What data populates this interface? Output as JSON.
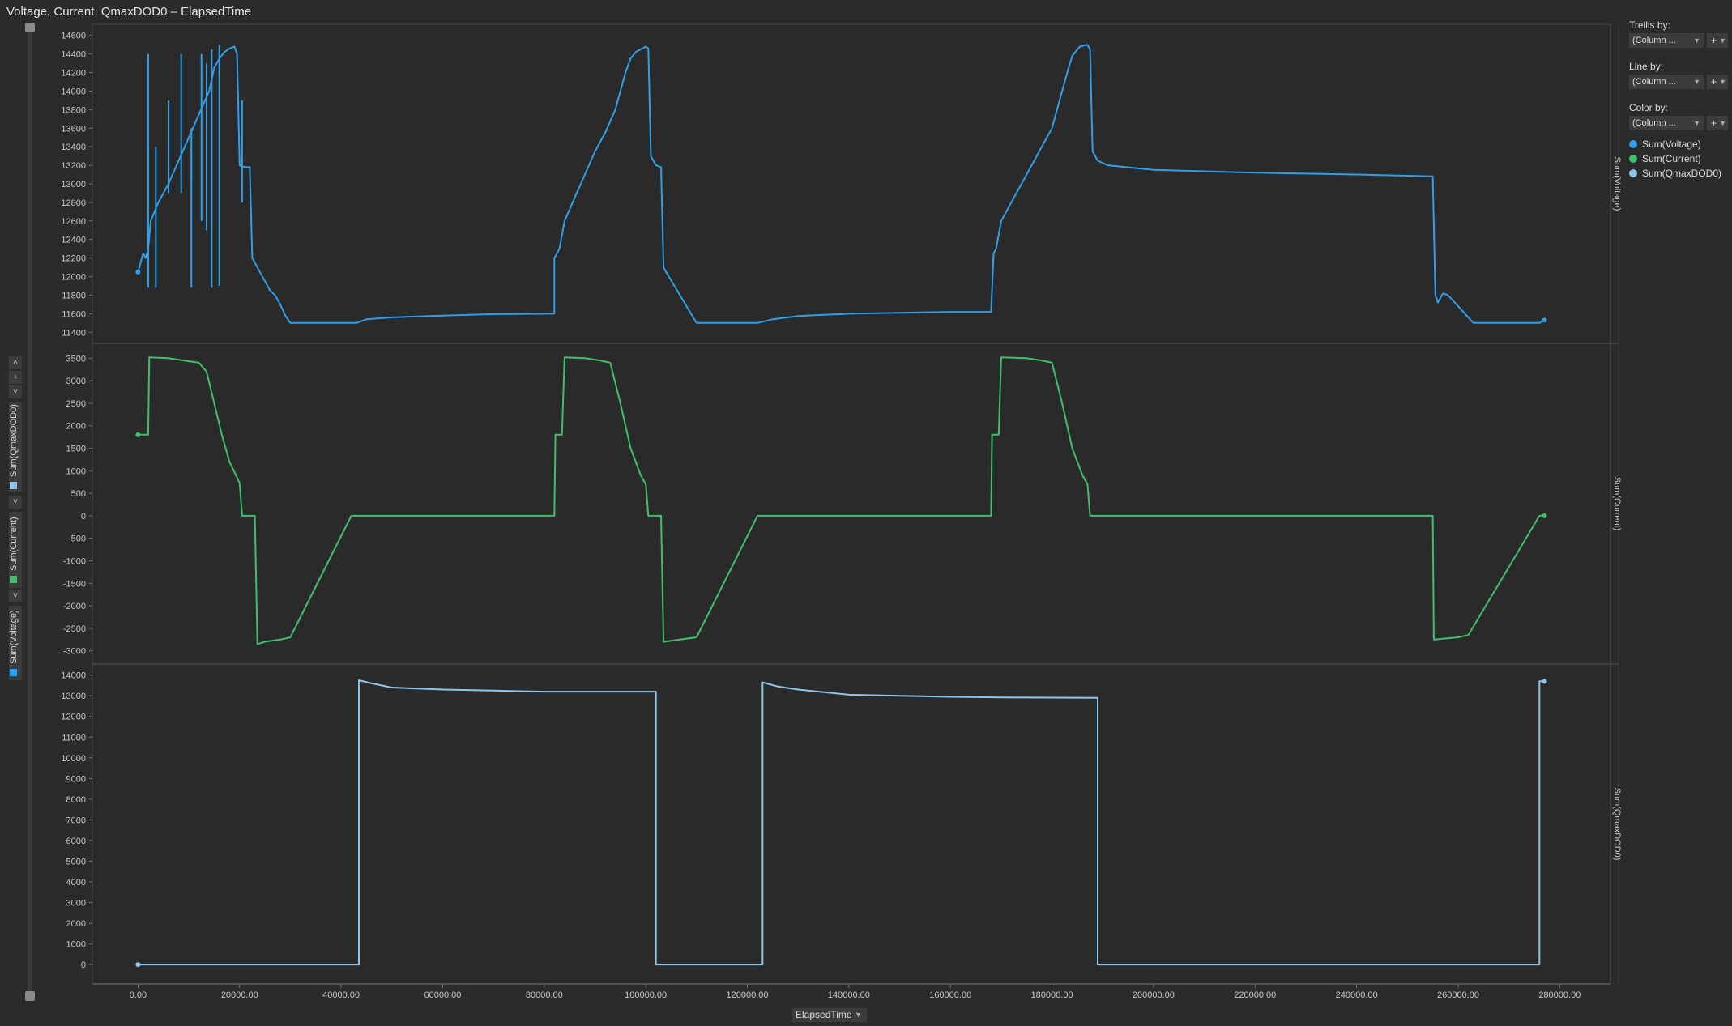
{
  "header": {
    "title": "Voltage, Current, QmaxDOD0 – ElapsedTime"
  },
  "x_axis_selector": {
    "label": "ElapsedTime"
  },
  "y_axis_legend": {
    "items": [
      {
        "label": "Sum(QmaxDOD0)",
        "color": "#8fc5e8"
      },
      {
        "label": "Sum(Current)",
        "color": "#3fc06a"
      },
      {
        "label": "Sum(Voltage)",
        "color": "#2ea0ea"
      }
    ],
    "buttons": {
      "up": "˄",
      "plus": "+",
      "down": "˅"
    }
  },
  "side_panel": {
    "trellis": {
      "label": "Trellis by:",
      "value": "(Column ..."
    },
    "line": {
      "label": "Line by:",
      "value": "(Column ..."
    },
    "color": {
      "label": "Color by:",
      "value": "(Column ..."
    },
    "plus_label": "+",
    "legend": [
      {
        "label": "Sum(Voltage)",
        "color": "#2ea0ea"
      },
      {
        "label": "Sum(Current)",
        "color": "#3fc06a"
      },
      {
        "label": "Sum(QmaxDOD0)",
        "color": "#8fc5e8"
      }
    ]
  },
  "chart_data": {
    "type": "line",
    "xlabel": "ElapsedTime",
    "xlim": [
      -9000,
      290000
    ],
    "x_ticks": [
      "0.00",
      "20000.00",
      "40000.00",
      "60000.00",
      "80000.00",
      "100000.00",
      "120000.00",
      "140000.00",
      "160000.00",
      "180000.00",
      "200000.00",
      "220000.00",
      "240000.00",
      "260000.00",
      "280000.00"
    ],
    "panels": [
      {
        "name": "Sum(Voltage)",
        "color": "#2ea0ea",
        "ylim": [
          11350,
          14650
        ],
        "y_ticks": [
          11400,
          11600,
          11800,
          12000,
          12200,
          12400,
          12600,
          12800,
          13000,
          13200,
          13400,
          13600,
          13800,
          14000,
          14200,
          14400,
          14600
        ],
        "points": [
          [
            0,
            12050
          ],
          [
            500,
            12150
          ],
          [
            1000,
            12250
          ],
          [
            1500,
            12200
          ],
          [
            2000,
            12300
          ],
          [
            2500,
            12600
          ],
          [
            4000,
            12800
          ],
          [
            6000,
            13000
          ],
          [
            8000,
            13250
          ],
          [
            10000,
            13500
          ],
          [
            12000,
            13750
          ],
          [
            14000,
            14000
          ],
          [
            15000,
            14250
          ],
          [
            16000,
            14350
          ],
          [
            17000,
            14420
          ],
          [
            18000,
            14460
          ],
          [
            19000,
            14480
          ],
          [
            19500,
            14400
          ],
          [
            20000,
            13200
          ],
          [
            21000,
            13180
          ],
          [
            22000,
            13180
          ],
          [
            22500,
            12200
          ],
          [
            24000,
            12050
          ],
          [
            26000,
            11850
          ],
          [
            27000,
            11800
          ],
          [
            28000,
            11700
          ],
          [
            29000,
            11580
          ],
          [
            30000,
            11500
          ],
          [
            43000,
            11500
          ],
          [
            45000,
            11540
          ],
          [
            50000,
            11560
          ],
          [
            60000,
            11580
          ],
          [
            70000,
            11595
          ],
          [
            82000,
            11600
          ],
          [
            82000,
            12200
          ],
          [
            83000,
            12300
          ],
          [
            84000,
            12600
          ],
          [
            86000,
            12850
          ],
          [
            88000,
            13100
          ],
          [
            90000,
            13350
          ],
          [
            92000,
            13550
          ],
          [
            94000,
            13800
          ],
          [
            95000,
            14000
          ],
          [
            96000,
            14200
          ],
          [
            97000,
            14350
          ],
          [
            98000,
            14420
          ],
          [
            100000,
            14480
          ],
          [
            100500,
            14460
          ],
          [
            101000,
            13300
          ],
          [
            102000,
            13200
          ],
          [
            103000,
            13180
          ],
          [
            103500,
            12100
          ],
          [
            104000,
            12050
          ],
          [
            110000,
            11500
          ],
          [
            122000,
            11500
          ],
          [
            125000,
            11540
          ],
          [
            130000,
            11575
          ],
          [
            140000,
            11600
          ],
          [
            150000,
            11610
          ],
          [
            160000,
            11620
          ],
          [
            168000,
            11620
          ],
          [
            168500,
            12250
          ],
          [
            169000,
            12300
          ],
          [
            170000,
            12600
          ],
          [
            172000,
            12800
          ],
          [
            174000,
            13000
          ],
          [
            176000,
            13200
          ],
          [
            178000,
            13400
          ],
          [
            180000,
            13600
          ],
          [
            181000,
            13800
          ],
          [
            182000,
            14000
          ],
          [
            183000,
            14200
          ],
          [
            184000,
            14380
          ],
          [
            185500,
            14480
          ],
          [
            187000,
            14500
          ],
          [
            187500,
            14450
          ],
          [
            188000,
            13350
          ],
          [
            189000,
            13250
          ],
          [
            191000,
            13200
          ],
          [
            200000,
            13150
          ],
          [
            220000,
            13120
          ],
          [
            240000,
            13100
          ],
          [
            255000,
            13080
          ],
          [
            255500,
            11800
          ],
          [
            256000,
            11720
          ],
          [
            257000,
            11820
          ],
          [
            258000,
            11800
          ],
          [
            260000,
            11680
          ],
          [
            263000,
            11500
          ],
          [
            276000,
            11500
          ],
          [
            277000,
            11530
          ]
        ],
        "spikes": [
          [
            2000,
            14400,
            11880
          ],
          [
            3500,
            13400,
            11880
          ],
          [
            6000,
            13900,
            12900
          ],
          [
            8500,
            14400,
            12900
          ],
          [
            10500,
            13600,
            11880
          ],
          [
            12500,
            14400,
            12600
          ],
          [
            13500,
            14300,
            12500
          ],
          [
            14500,
            14450,
            11880
          ],
          [
            16000,
            14500,
            11900
          ],
          [
            20500,
            13900,
            12800
          ]
        ]
      },
      {
        "name": "Sum(Current)",
        "color": "#3fc06a",
        "ylim": [
          -3150,
          3650
        ],
        "y_ticks": [
          -3000,
          -2500,
          -2000,
          -1500,
          -1000,
          -500,
          0,
          500,
          1000,
          1500,
          2000,
          2500,
          3000,
          3500
        ],
        "points": [
          [
            0,
            1800
          ],
          [
            2000,
            1800
          ],
          [
            2200,
            3520
          ],
          [
            6000,
            3500
          ],
          [
            9000,
            3450
          ],
          [
            12000,
            3400
          ],
          [
            13500,
            3200
          ],
          [
            15000,
            2500
          ],
          [
            16500,
            1800
          ],
          [
            18000,
            1200
          ],
          [
            19500,
            850
          ],
          [
            20000,
            720
          ],
          [
            20500,
            0
          ],
          [
            23000,
            0
          ],
          [
            23500,
            -2850
          ],
          [
            25000,
            -2800
          ],
          [
            28000,
            -2750
          ],
          [
            30000,
            -2700
          ],
          [
            42000,
            0
          ],
          [
            82000,
            0
          ],
          [
            82200,
            1800
          ],
          [
            83500,
            1800
          ],
          [
            84000,
            3520
          ],
          [
            88000,
            3500
          ],
          [
            91000,
            3450
          ],
          [
            93000,
            3400
          ],
          [
            95000,
            2500
          ],
          [
            97000,
            1500
          ],
          [
            99000,
            900
          ],
          [
            100000,
            700
          ],
          [
            100500,
            0
          ],
          [
            103000,
            0
          ],
          [
            103500,
            -2800
          ],
          [
            110000,
            -2700
          ],
          [
            122000,
            0
          ],
          [
            168000,
            0
          ],
          [
            168200,
            1800
          ],
          [
            169500,
            1800
          ],
          [
            170000,
            3520
          ],
          [
            175000,
            3500
          ],
          [
            178000,
            3450
          ],
          [
            180000,
            3400
          ],
          [
            182000,
            2500
          ],
          [
            184000,
            1500
          ],
          [
            186000,
            900
          ],
          [
            187000,
            700
          ],
          [
            187500,
            0
          ],
          [
            255000,
            0
          ],
          [
            255200,
            -2750
          ],
          [
            260000,
            -2700
          ],
          [
            262000,
            -2650
          ],
          [
            276000,
            0
          ],
          [
            277000,
            0
          ]
        ]
      },
      {
        "name": "Sum(QmaxDOD0)",
        "color": "#8fc5e8",
        "ylim": [
          -700,
          14300
        ],
        "y_ticks": [
          0,
          1000,
          2000,
          3000,
          4000,
          5000,
          6000,
          7000,
          8000,
          9000,
          10000,
          11000,
          12000,
          13000,
          14000
        ],
        "points": [
          [
            0,
            0
          ],
          [
            43500,
            0
          ],
          [
            43500,
            13750
          ],
          [
            46000,
            13600
          ],
          [
            50000,
            13400
          ],
          [
            60000,
            13300
          ],
          [
            70000,
            13250
          ],
          [
            80000,
            13200
          ],
          [
            102000,
            13200
          ],
          [
            102000,
            0
          ],
          [
            123000,
            0
          ],
          [
            123000,
            13650
          ],
          [
            126000,
            13450
          ],
          [
            130000,
            13300
          ],
          [
            140000,
            13050
          ],
          [
            150000,
            13000
          ],
          [
            160000,
            12950
          ],
          [
            170000,
            12920
          ],
          [
            189000,
            12900
          ],
          [
            189000,
            0
          ],
          [
            276000,
            0
          ],
          [
            276000,
            13700
          ],
          [
            277000,
            13700
          ]
        ]
      }
    ]
  }
}
